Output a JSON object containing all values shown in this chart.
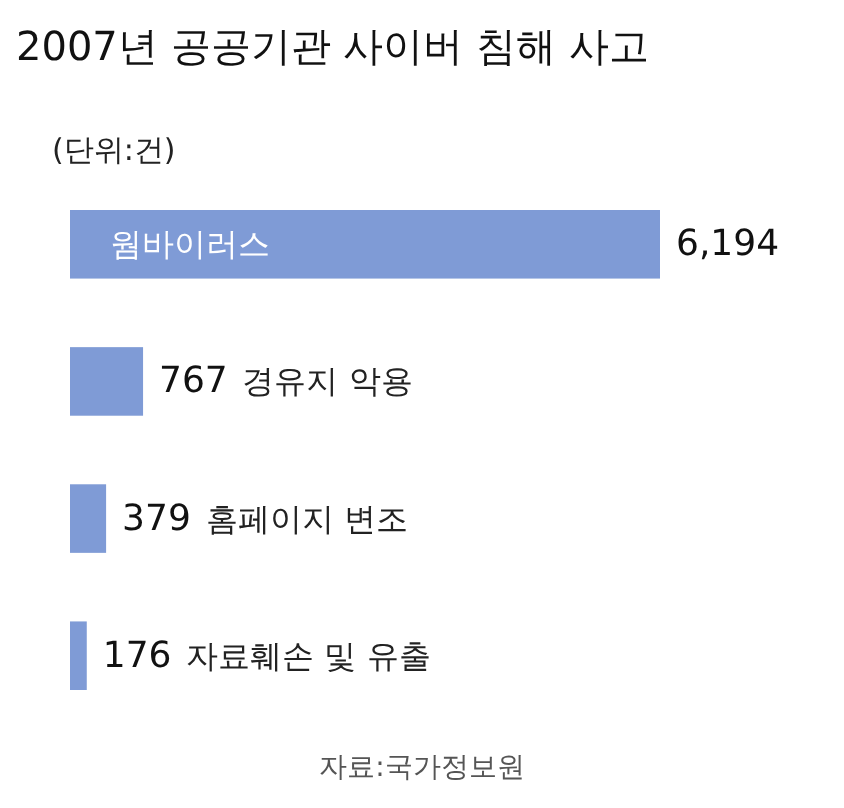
{
  "chart_data": {
    "type": "bar",
    "orientation": "horizontal",
    "title": "2007년 공공기관 사이버 침해 사고",
    "subtitle": "(단위:건)",
    "categories": [
      "웜바이러스",
      "경유지 악용",
      "홈페이지 변조",
      "자료훼손 및 유출"
    ],
    "values": [
      6194,
      767,
      379,
      176
    ],
    "color": "#7f9bd6",
    "value_labels": [
      "6,194",
      "767",
      "379",
      "176"
    ],
    "annotations": [
      "자료:국가정보원"
    ]
  }
}
